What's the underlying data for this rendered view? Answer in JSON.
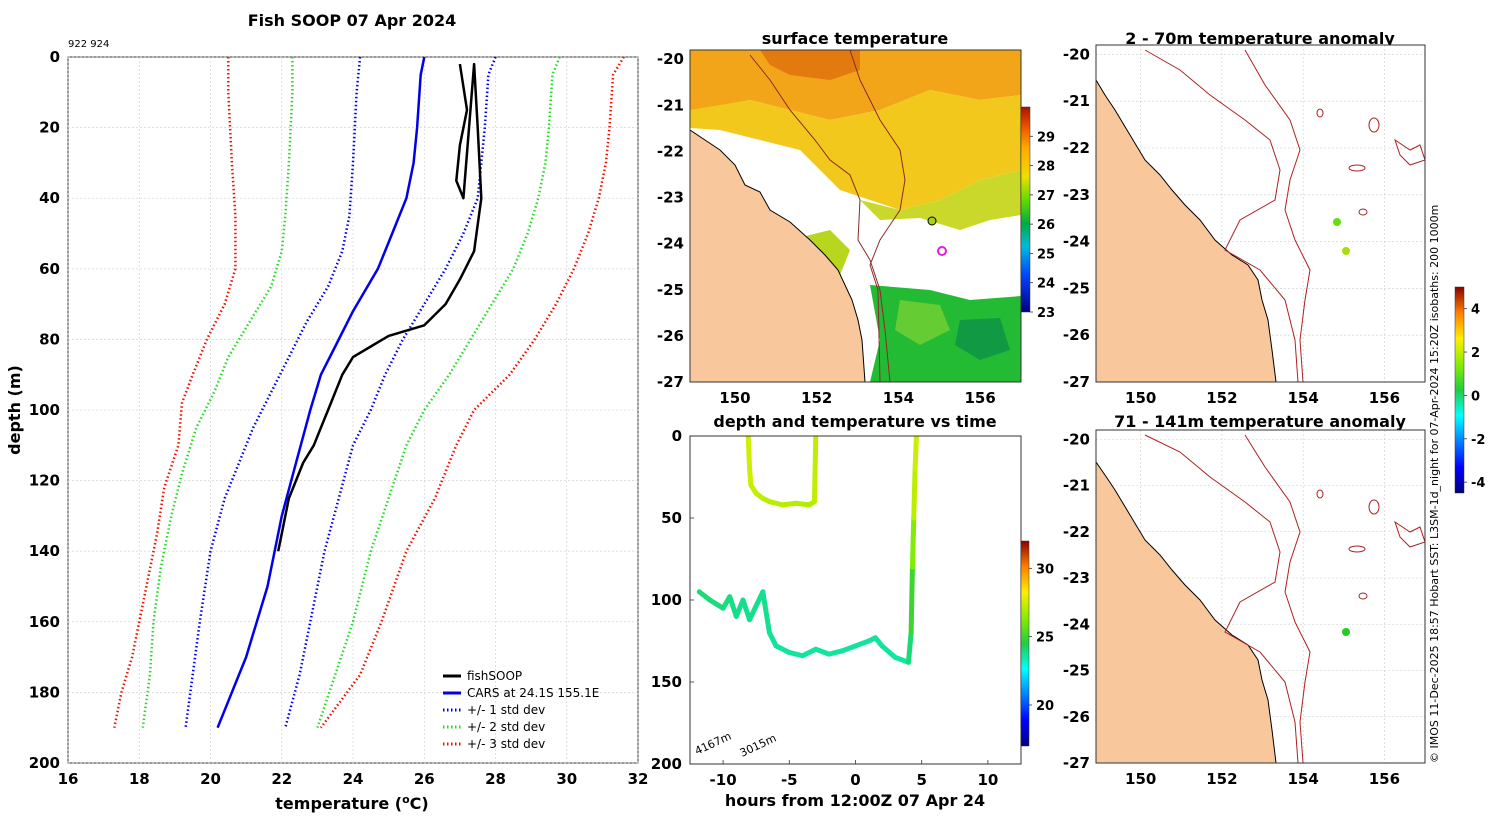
{
  "figure": {
    "title": "Fish SOOP 07 Apr 2024",
    "subtitle": "922 924",
    "side_caption": "© IMOS 11-Dec-2025 18:57 Hobart SST: L3SM-1d_night for 07-Apr-2024 15:20Z isobaths: 200  1000m"
  },
  "colors": {
    "fishsoop": "#000000",
    "cars": "#0000ee",
    "std1": "#0000ee",
    "std2": "#22dd22",
    "std3": "#ee1100",
    "land": "#f8c89c",
    "isobath": "#b02020"
  },
  "chart_data": [
    {
      "id": "profile",
      "type": "line",
      "title": "Fish SOOP 07 Apr 2024",
      "xlabel": "temperature (°C)",
      "ylabel": "depth (m)",
      "xlim": [
        16,
        32
      ],
      "ylim": [
        200,
        0
      ],
      "xticks": [
        "16",
        "18",
        "20",
        "22",
        "24",
        "26",
        "28",
        "30",
        "32"
      ],
      "yticks": [
        "0",
        "20",
        "40",
        "60",
        "80",
        "100",
        "120",
        "140",
        "160",
        "180",
        "200"
      ],
      "grid": true,
      "legend": {
        "position": "bottom-right",
        "entries": [
          "fishSOOP",
          "CARS at 24.1S 155.1E",
          "+/- 1 std dev",
          "+/- 2 std dev",
          "+/- 3 std dev"
        ]
      },
      "series": [
        {
          "name": "CARS at 24.1S 155.1E",
          "style": "solid",
          "color": "cars",
          "points": [
            [
              26.0,
              0
            ],
            [
              25.9,
              5
            ],
            [
              25.8,
              20
            ],
            [
              25.7,
              30
            ],
            [
              25.5,
              40
            ],
            [
              25.1,
              50
            ],
            [
              24.7,
              60
            ],
            [
              24.0,
              72
            ],
            [
              23.5,
              82
            ],
            [
              23.1,
              90
            ],
            [
              22.8,
              100
            ],
            [
              22.4,
              115
            ],
            [
              22.0,
              130
            ],
            [
              21.6,
              150
            ],
            [
              21.0,
              170
            ],
            [
              20.2,
              190
            ]
          ]
        },
        {
          "name": "+1 std dev",
          "style": "dotted",
          "color": "std1",
          "points": [
            [
              28.0,
              0
            ],
            [
              27.8,
              5
            ],
            [
              27.7,
              20
            ],
            [
              27.6,
              30
            ],
            [
              27.5,
              40
            ],
            [
              27.1,
              50
            ],
            [
              26.6,
              60
            ],
            [
              26.0,
              70
            ],
            [
              25.4,
              80
            ],
            [
              24.9,
              90
            ],
            [
              24.5,
              100
            ],
            [
              24.0,
              110
            ],
            [
              23.6,
              125
            ],
            [
              23.2,
              140
            ],
            [
              22.8,
              160
            ],
            [
              22.5,
              175
            ],
            [
              22.1,
              190
            ]
          ]
        },
        {
          "name": "-1 std dev",
          "style": "dotted",
          "color": "std1",
          "points": [
            [
              24.2,
              0
            ],
            [
              24.1,
              10
            ],
            [
              24.0,
              30
            ],
            [
              23.9,
              45
            ],
            [
              23.7,
              55
            ],
            [
              23.3,
              65
            ],
            [
              22.7,
              75
            ],
            [
              22.2,
              85
            ],
            [
              21.7,
              95
            ],
            [
              21.2,
              105
            ],
            [
              20.8,
              115
            ],
            [
              20.4,
              125
            ],
            [
              20.0,
              140
            ],
            [
              19.7,
              160
            ],
            [
              19.5,
              175
            ],
            [
              19.3,
              190
            ]
          ]
        },
        {
          "name": "+2 std dev",
          "style": "dotted",
          "color": "std2",
          "points": [
            [
              29.8,
              0
            ],
            [
              29.6,
              5
            ],
            [
              29.5,
              20
            ],
            [
              29.4,
              30
            ],
            [
              29.2,
              40
            ],
            [
              28.9,
              50
            ],
            [
              28.5,
              60
            ],
            [
              27.9,
              70
            ],
            [
              27.3,
              80
            ],
            [
              26.7,
              90
            ],
            [
              26.0,
              100
            ],
            [
              25.5,
              110
            ],
            [
              25.0,
              125
            ],
            [
              24.5,
              140
            ],
            [
              24.0,
              160
            ],
            [
              23.5,
              175
            ],
            [
              23.0,
              190
            ]
          ]
        },
        {
          "name": "-2 std dev",
          "style": "dotted",
          "color": "std2",
          "points": [
            [
              22.3,
              0
            ],
            [
              22.3,
              10
            ],
            [
              22.2,
              30
            ],
            [
              22.1,
              45
            ],
            [
              22.0,
              55
            ],
            [
              21.7,
              65
            ],
            [
              21.1,
              75
            ],
            [
              20.5,
              85
            ],
            [
              20.1,
              95
            ],
            [
              19.6,
              105
            ],
            [
              19.2,
              118
            ],
            [
              18.9,
              130
            ],
            [
              18.6,
              145
            ],
            [
              18.4,
              160
            ],
            [
              18.3,
              175
            ],
            [
              18.1,
              190
            ]
          ]
        },
        {
          "name": "+3 std dev",
          "style": "dotted",
          "color": "std3",
          "points": [
            [
              31.6,
              0
            ],
            [
              31.3,
              5
            ],
            [
              31.2,
              20
            ],
            [
              31.1,
              30
            ],
            [
              30.9,
              40
            ],
            [
              30.6,
              50
            ],
            [
              30.2,
              60
            ],
            [
              29.7,
              70
            ],
            [
              29.1,
              80
            ],
            [
              28.4,
              90
            ],
            [
              27.4,
              100
            ],
            [
              26.9,
              110
            ],
            [
              26.3,
              125
            ],
            [
              25.5,
              140
            ],
            [
              24.8,
              160
            ],
            [
              24.2,
              175
            ],
            [
              23.1,
              190
            ]
          ]
        },
        {
          "name": "-3 std dev",
          "style": "dotted",
          "color": "std3",
          "points": [
            [
              20.5,
              0
            ],
            [
              20.5,
              10
            ],
            [
              20.6,
              30
            ],
            [
              20.7,
              45
            ],
            [
              20.7,
              60
            ],
            [
              20.4,
              70
            ],
            [
              19.9,
              80
            ],
            [
              19.5,
              90
            ],
            [
              19.2,
              98
            ],
            [
              19.1,
              110
            ],
            [
              18.7,
              122
            ],
            [
              18.5,
              135
            ],
            [
              18.2,
              150
            ],
            [
              17.8,
              170
            ],
            [
              17.5,
              180
            ],
            [
              17.3,
              190
            ]
          ]
        },
        {
          "name": "fishSOOP",
          "style": "solid",
          "color": "fishsoop",
          "points": [
            [
              27.0,
              2
            ],
            [
              27.2,
              15
            ],
            [
              27.0,
              25
            ],
            [
              26.9,
              35
            ],
            [
              27.1,
              40
            ],
            [
              27.4,
              2
            ],
            [
              27.5,
              20
            ],
            [
              27.6,
              40
            ],
            [
              27.4,
              55
            ],
            [
              27.0,
              63
            ],
            [
              26.6,
              70
            ],
            [
              26.0,
              76
            ],
            [
              25.0,
              79
            ],
            [
              24.5,
              82
            ],
            [
              24.0,
              85
            ],
            [
              23.7,
              90
            ],
            [
              23.5,
              95
            ],
            [
              23.3,
              100
            ],
            [
              23.1,
              105
            ],
            [
              22.9,
              110
            ],
            [
              22.6,
              115
            ],
            [
              22.4,
              120
            ],
            [
              22.2,
              125
            ],
            [
              22.1,
              130
            ],
            [
              22.0,
              135
            ],
            [
              21.9,
              140
            ]
          ]
        }
      ]
    },
    {
      "id": "sst_map",
      "type": "heatmap",
      "title": "surface temperature",
      "xticks": [
        "150",
        "152",
        "154",
        "156"
      ],
      "yticks": [
        "-20",
        "-21",
        "-22",
        "-23",
        "-24",
        "-25",
        "-26",
        "-27"
      ],
      "xlim": [
        148.9,
        157.0
      ],
      "ylim": [
        -27,
        -19.8
      ],
      "colorbar": {
        "min": 23,
        "max": 30,
        "ticks": [
          "23",
          "24",
          "25",
          "26",
          "27",
          "28",
          "29"
        ]
      },
      "markers": [
        {
          "lon": 155.1,
          "lat": -24.1,
          "label": "profile location"
        }
      ]
    },
    {
      "id": "anom_map_1",
      "type": "heatmap",
      "title": "2 - 70m temperature anomaly",
      "xticks": [
        "150",
        "152",
        "154",
        "156"
      ],
      "yticks": [
        "-20",
        "-21",
        "-22",
        "-23",
        "-24",
        "-25",
        "-26",
        "-27"
      ],
      "xlim": [
        148.9,
        157.0
      ],
      "ylim": [
        -27,
        -19.8
      ],
      "points": [
        {
          "lon": 154.8,
          "lat": -23.4,
          "value": 0.8
        },
        {
          "lon": 155.1,
          "lat": -24.1,
          "value": 1.2
        }
      ]
    },
    {
      "id": "anom_map_2",
      "type": "heatmap",
      "title": "71 - 141m temperature anomaly",
      "xticks": [
        "150",
        "152",
        "154",
        "156"
      ],
      "yticks": [
        "-20",
        "-21",
        "-22",
        "-23",
        "-24",
        "-25",
        "-26",
        "-27"
      ],
      "xlim": [
        148.9,
        157.0
      ],
      "ylim": [
        -27,
        -19.8
      ],
      "points": [
        {
          "lon": 155.1,
          "lat": -24.1,
          "value": 0.3
        }
      ]
    },
    {
      "id": "anomaly_colorbar",
      "type": "heatmap",
      "title": "",
      "colorbar": {
        "min": -4.5,
        "max": 5,
        "ticks": [
          "-4",
          "-2",
          "0",
          "2",
          "4"
        ]
      }
    },
    {
      "id": "depth_time",
      "type": "scatter",
      "title": "depth and temperature vs time",
      "xlabel": "hours from 12:00Z 07 Apr 24",
      "ylabel": "",
      "xlim": [
        -12.5,
        12.5
      ],
      "ylim": [
        200,
        0
      ],
      "xticks": [
        "-10",
        "-5",
        "0",
        "5",
        "10"
      ],
      "yticks": [
        "0",
        "50",
        "100",
        "150",
        "200"
      ],
      "colorbar": {
        "min": 17,
        "max": 32,
        "ticks": [
          "20",
          "25",
          "30"
        ]
      },
      "bottom_depths": [
        "4167m",
        "3015m"
      ],
      "series": [
        {
          "name": "profile 1 (shallow)",
          "points": [
            [
              -8.1,
              0,
              27.5
            ],
            [
              -8.0,
              20,
              27.5
            ],
            [
              -7.9,
              30,
              27.4
            ],
            [
              -7.5,
              35,
              27.3
            ],
            [
              -7.0,
              38,
              27.2
            ],
            [
              -6.5,
              40,
              27.2
            ],
            [
              -5.5,
              42,
              27.1
            ],
            [
              -4.5,
              41,
              27.1
            ],
            [
              -3.5,
              42,
              27.0
            ],
            [
              -3.1,
              40,
              27.0
            ],
            [
              -3.0,
              0,
              27.5
            ]
          ]
        },
        {
          "name": "profile 2 (deep)",
          "points": [
            [
              -11.8,
              95,
              24.0
            ],
            [
              -11,
              100,
              24.0
            ],
            [
              -10,
              105,
              23.9
            ],
            [
              -9.5,
              98,
              23.9
            ],
            [
              -9.0,
              110,
              23.8
            ],
            [
              -8.5,
              100,
              23.8
            ],
            [
              -8.0,
              112,
              23.8
            ],
            [
              -7.0,
              95,
              23.8
            ],
            [
              -6.5,
              120,
              23.7
            ],
            [
              -6.0,
              128,
              23.6
            ],
            [
              -5.0,
              132,
              23.6
            ],
            [
              -4.0,
              134,
              23.6
            ],
            [
              -3.0,
              130,
              23.6
            ],
            [
              -2.0,
              133,
              23.6
            ],
            [
              -1.0,
              131,
              23.6
            ],
            [
              0,
              128,
              23.6
            ],
            [
              1.0,
              125,
              23.6
            ],
            [
              1.5,
              123,
              23.7
            ],
            [
              2.0,
              128,
              23.6
            ],
            [
              3.0,
              135,
              23.6
            ],
            [
              4.0,
              138,
              23.5
            ],
            [
              4.2,
              120,
              24.5
            ],
            [
              4.3,
              80,
              25.5
            ],
            [
              4.4,
              50,
              27.0
            ],
            [
              4.5,
              20,
              27.4
            ],
            [
              4.6,
              0,
              27.5
            ]
          ]
        }
      ]
    }
  ]
}
